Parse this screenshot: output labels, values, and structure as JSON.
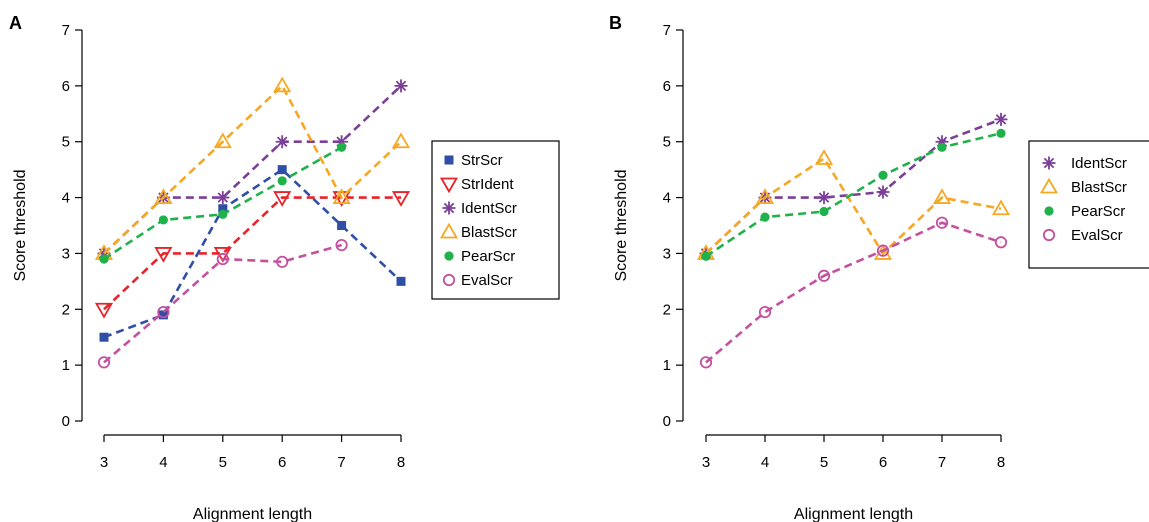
{
  "colors": {
    "StrScr": "#2f4ea6",
    "StrIdent": "#e8242a",
    "IdentScr": "#7b3f98",
    "BlastScr": "#f7a823",
    "PearScr": "#20b24a",
    "EvalScr": "#c4519f"
  },
  "markers": {
    "StrScr": "square-filled",
    "StrIdent": "triangle-down-open",
    "IdentScr": "asterisk",
    "BlastScr": "triangle-up-open",
    "PearScr": "circle-filled",
    "EvalScr": "circle-open"
  },
  "chart_data": [
    {
      "type": "line",
      "panel_label": "A",
      "xlabel": "Alignment length",
      "ylabel": "Score threshold",
      "xlim": [
        3,
        8
      ],
      "ylim": [
        0,
        7
      ],
      "x_ticks": [
        "3",
        "4",
        "5",
        "6",
        "7",
        "8"
      ],
      "y_ticks": [
        "0",
        "1",
        "2",
        "3",
        "4",
        "5",
        "6",
        "7"
      ],
      "grid": false,
      "legend_position": "right",
      "legend": [
        "StrScr",
        "StrIdent",
        "IdentScr",
        "BlastScr",
        "PearScr",
        "EvalScr"
      ],
      "x": [
        3,
        4,
        5,
        6,
        7,
        8
      ],
      "series": [
        {
          "name": "StrScr",
          "values": [
            1.5,
            1.9,
            3.8,
            4.5,
            3.5,
            2.5
          ]
        },
        {
          "name": "StrIdent",
          "values": [
            2,
            3,
            3,
            4,
            4,
            4
          ]
        },
        {
          "name": "IdentScr",
          "values": [
            3,
            4,
            4,
            5,
            5,
            6
          ]
        },
        {
          "name": "BlastScr",
          "values": [
            3,
            4,
            5,
            6,
            4,
            5
          ]
        },
        {
          "name": "PearScr",
          "values": [
            2.9,
            3.6,
            3.7,
            4.3,
            4.9,
            null
          ]
        },
        {
          "name": "EvalScr",
          "values": [
            1.05,
            1.95,
            2.9,
            2.85,
            3.15,
            null
          ]
        }
      ]
    },
    {
      "type": "line",
      "panel_label": "B",
      "xlabel": "Alignment length",
      "ylabel": "Score threshold",
      "xlim": [
        3,
        8
      ],
      "ylim": [
        0,
        7
      ],
      "x_ticks": [
        "3",
        "4",
        "5",
        "6",
        "7",
        "8"
      ],
      "y_ticks": [
        "0",
        "1",
        "2",
        "3",
        "4",
        "5",
        "6",
        "7"
      ],
      "grid": false,
      "legend_position": "right",
      "legend": [
        "IdentScr",
        "BlastScr",
        "PearScr",
        "EvalScr"
      ],
      "x": [
        3,
        4,
        5,
        6,
        7,
        8
      ],
      "series": [
        {
          "name": "IdentScr",
          "values": [
            3,
            4,
            4,
            4.1,
            5,
            5.4
          ]
        },
        {
          "name": "BlastScr",
          "values": [
            3,
            4,
            4.7,
            3,
            4,
            3.8
          ]
        },
        {
          "name": "PearScr",
          "values": [
            2.95,
            3.65,
            3.75,
            4.4,
            4.9,
            5.15
          ]
        },
        {
          "name": "EvalScr",
          "values": [
            1.05,
            1.95,
            2.6,
            3.05,
            3.55,
            3.2
          ]
        }
      ]
    }
  ]
}
